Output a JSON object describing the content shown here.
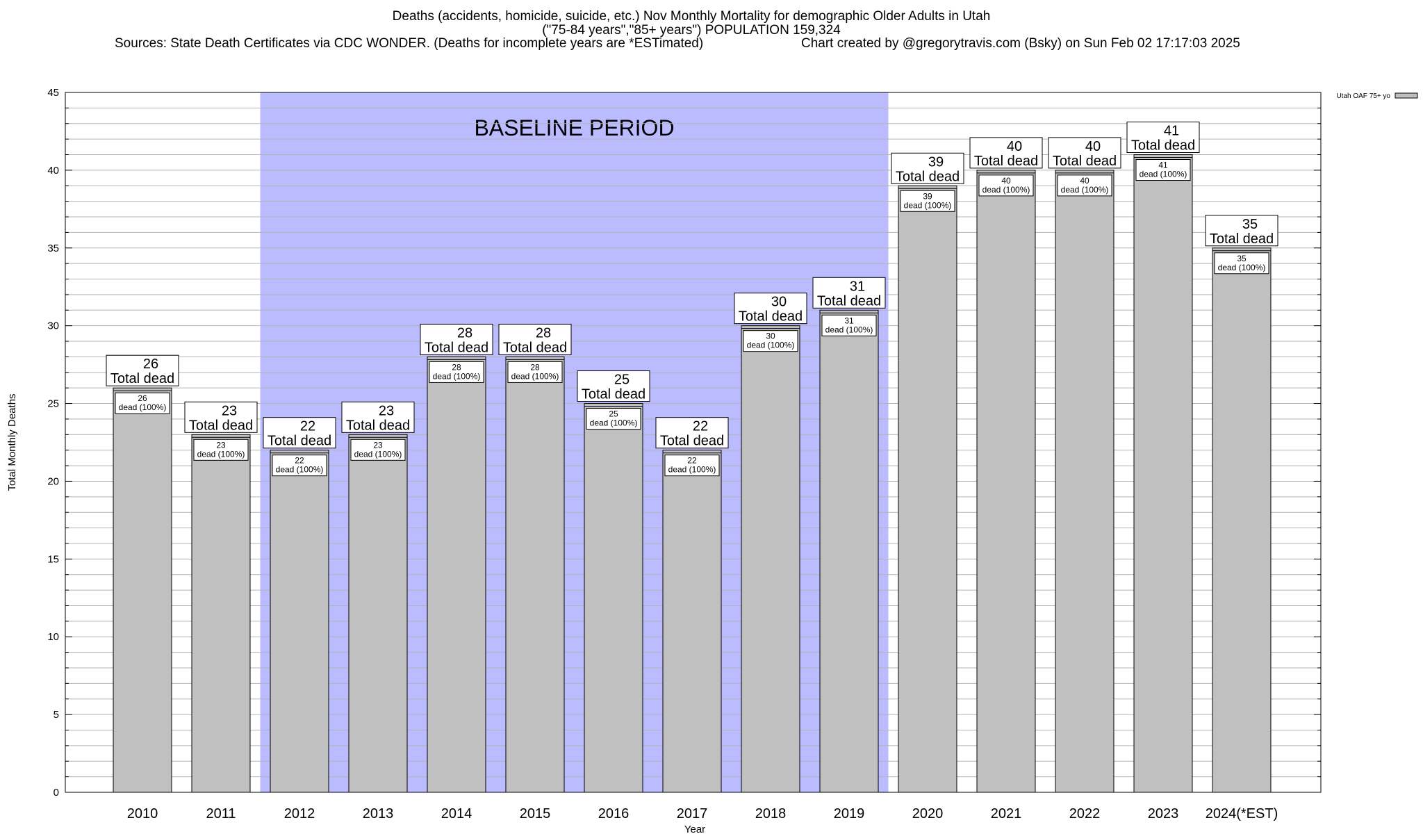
{
  "title": {
    "line1": "Deaths (accidents, homicide, suicide, etc.) Nov Monthly Mortality for demographic Older Adults in Utah",
    "line2": "(\"75-84 years\",\"85+ years\") POPULATION 159,324",
    "sources": "Sources: State Death Certificates via CDC WONDER. (Deaths for incomplete years are *ESTimated)",
    "credit": "Chart created by @gregorytravis.com (Bsky) on Sun Feb 02 17:17:03 2025"
  },
  "colors": {
    "bar": "#c0c0c0",
    "baseline": "#bbbbff",
    "grid": "#b4b4b4"
  },
  "chart_data": {
    "type": "bar",
    "xlabel": "Year",
    "ylabel": "Total Monthly Deaths",
    "ylim": [
      0,
      45
    ],
    "yticks": [
      0,
      5,
      10,
      15,
      20,
      25,
      30,
      35,
      40,
      45
    ],
    "grid": true,
    "legend": {
      "position": "top-right",
      "label": "Utah OAF 75+ yo"
    },
    "baseline": {
      "label": "BASELINE PERIOD",
      "from": "2012",
      "to": "2019"
    },
    "categories": [
      "2010",
      "2011",
      "2012",
      "2013",
      "2014",
      "2015",
      "2016",
      "2017",
      "2018",
      "2019",
      "2020",
      "2021",
      "2022",
      "2023",
      "2024(*EST)"
    ],
    "series": [
      {
        "name": "Utah OAF 75+ yo",
        "values": [
          26,
          23,
          22,
          23,
          28,
          28,
          25,
          22,
          30,
          31,
          39,
          40,
          40,
          41,
          35
        ]
      }
    ],
    "label_top": "Total dead",
    "label_inner": "dead (100%)"
  }
}
